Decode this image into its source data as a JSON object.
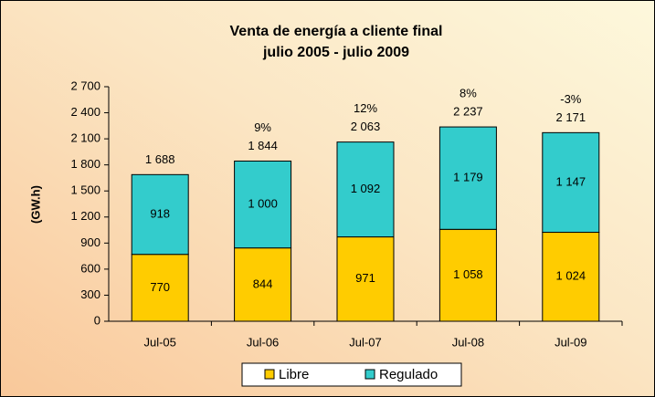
{
  "chart_data": {
    "type": "stacked_bar",
    "title": "Venta de energía a cliente final",
    "subtitle": "julio 2005 - julio 2009",
    "y_label": "(GW.h)",
    "categories": [
      "Jul-05",
      "Jul-06",
      "Jul-07",
      "Jul-08",
      "Jul-09"
    ],
    "series": [
      {
        "name": "Libre",
        "color": "#ffcc00",
        "values": [
          770,
          844,
          971,
          1058,
          1024
        ],
        "value_labels": [
          "770",
          "844",
          "971",
          "1 058",
          "1 024"
        ]
      },
      {
        "name": "Regulado",
        "color": "#33cccc",
        "values": [
          918,
          1000,
          1092,
          1179,
          1147
        ],
        "value_labels": [
          "918",
          "1 000",
          "1 092",
          "1 179",
          "1 147"
        ]
      }
    ],
    "totals": {
      "values": [
        1688,
        1844,
        2063,
        2237,
        2171
      ],
      "value_labels": [
        "1 688",
        "1 844",
        "2 063",
        "2 237",
        "2 171"
      ]
    },
    "growth": {
      "values": [
        null,
        9,
        12,
        8,
        -3
      ],
      "value_labels": [
        null,
        "9%",
        "12%",
        "8%",
        "-3%"
      ]
    },
    "ylim": [
      0,
      2700
    ],
    "yticks": [
      0,
      300,
      600,
      900,
      {
        "value": 1200,
        "label": "1 200"
      },
      {
        "value": 1500,
        "label": "1 500"
      },
      {
        "value": 1800,
        "label": "1 800"
      },
      {
        "value": 2100,
        "label": "2 100"
      },
      {
        "value": 2400,
        "label": "2 400"
      },
      {
        "value": 2700,
        "label": "2 700"
      }
    ],
    "grid": false
  }
}
